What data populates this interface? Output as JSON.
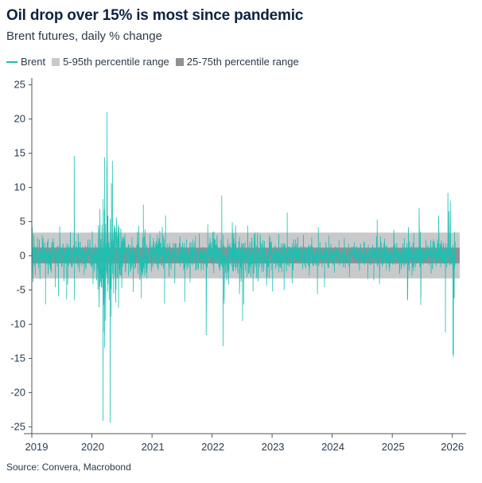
{
  "header": {
    "title": "Oil drop over 15% is most since pandemic",
    "subtitle": "Brent futures, daily % change"
  },
  "legend": {
    "brent": "Brent",
    "p5_95": "5-95th percentile range",
    "p25_75": "25-75th percentile range"
  },
  "footer": {
    "source": "Source: Convera, Macrobond"
  },
  "colors": {
    "brent": "#1fbfb0",
    "band_outer": "#c8c9cb",
    "band_inner": "#8f9193",
    "axis": "#555555"
  },
  "chart_data": {
    "type": "line",
    "title": "Oil drop over 15% is most since pandemic",
    "subtitle": "Brent futures, daily % change",
    "xlabel": "",
    "ylabel": "",
    "ylim": [
      -26,
      26
    ],
    "xlim": [
      "2019-01-01",
      "2026-02-15"
    ],
    "yticks": [
      25,
      20,
      15,
      10,
      5,
      0,
      -5,
      -10,
      -15,
      -20,
      -25
    ],
    "xticks": [
      "2019",
      "2020",
      "2021",
      "2022",
      "2023",
      "2024",
      "2025",
      "2026"
    ],
    "grid": false,
    "legend_position": "top-left",
    "bands": [
      {
        "name": "5-95th percentile range",
        "low": -3.3,
        "high": 3.4
      },
      {
        "name": "25-75th percentile range",
        "low": -1.1,
        "high": 1.2
      }
    ],
    "series": [
      {
        "name": "Brent",
        "points": [
          [
            "2019-01-02",
            -2.5
          ],
          [
            "2019-01-04",
            4.2
          ],
          [
            "2019-01-08",
            -3.8
          ],
          [
            "2019-01-14",
            3.1
          ],
          [
            "2019-01-22",
            -2.9
          ],
          [
            "2019-02-04",
            2.7
          ],
          [
            "2019-02-20",
            -3.4
          ],
          [
            "2019-03-05",
            3.0
          ],
          [
            "2019-03-25",
            -7.1
          ],
          [
            "2019-04-10",
            2.5
          ],
          [
            "2019-05-23",
            -4.6
          ],
          [
            "2019-06-12",
            -5.9
          ],
          [
            "2019-06-20",
            4.3
          ],
          [
            "2019-07-15",
            -3.7
          ],
          [
            "2019-08-01",
            -6.4
          ],
          [
            "2019-08-07",
            -4.2
          ],
          [
            "2019-08-23",
            3.5
          ],
          [
            "2019-09-16",
            14.6
          ],
          [
            "2019-09-17",
            -6.5
          ],
          [
            "2019-10-10",
            3.2
          ],
          [
            "2019-11-15",
            -2.8
          ],
          [
            "2019-12-20",
            2.4
          ],
          [
            "2020-01-03",
            3.6
          ],
          [
            "2020-01-08",
            -4.1
          ],
          [
            "2020-01-30",
            -3.6
          ],
          [
            "2020-02-24",
            -3.8
          ],
          [
            "2020-03-02",
            4.5
          ],
          [
            "2020-03-09",
            -24.1
          ],
          [
            "2020-03-10",
            8.3
          ],
          [
            "2020-03-12",
            -7.2
          ],
          [
            "2020-03-16",
            -11.2
          ],
          [
            "2020-03-18",
            -13.4
          ],
          [
            "2020-03-19",
            14.4
          ],
          [
            "2020-03-25",
            -9.5
          ],
          [
            "2020-04-01",
            13.0
          ],
          [
            "2020-04-02",
            21.0
          ],
          [
            "2020-04-03",
            13.9
          ],
          [
            "2020-04-06",
            -3.1
          ],
          [
            "2020-04-09",
            -4.1
          ],
          [
            "2020-04-15",
            -6.4
          ],
          [
            "2020-04-21",
            -24.4
          ],
          [
            "2020-04-22",
            5.4
          ],
          [
            "2020-04-28",
            -8.9
          ],
          [
            "2020-04-29",
            10.6
          ],
          [
            "2020-05-05",
            13.9
          ],
          [
            "2020-05-12",
            -5.5
          ],
          [
            "2020-05-20",
            4.2
          ],
          [
            "2020-06-11",
            -7.6
          ],
          [
            "2020-06-25",
            4.0
          ],
          [
            "2020-07-20",
            3.2
          ],
          [
            "2020-08-10",
            -3.0
          ],
          [
            "2020-09-08",
            -5.3
          ],
          [
            "2020-10-12",
            4.4
          ],
          [
            "2020-10-28",
            -6.2
          ],
          [
            "2020-11-09",
            7.5
          ],
          [
            "2020-11-16",
            2.8
          ],
          [
            "2020-12-01",
            -3.3
          ],
          [
            "2021-01-10",
            2.6
          ],
          [
            "2021-02-01",
            3.1
          ],
          [
            "2021-03-04",
            4.2
          ],
          [
            "2021-03-18",
            -7.0
          ],
          [
            "2021-03-24",
            5.9
          ],
          [
            "2021-04-15",
            -3.0
          ],
          [
            "2021-05-19",
            -4.0
          ],
          [
            "2021-06-20",
            2.8
          ],
          [
            "2021-07-19",
            -6.7
          ],
          [
            "2021-08-20",
            -3.9
          ],
          [
            "2021-09-22",
            2.9
          ],
          [
            "2021-10-15",
            3.3
          ],
          [
            "2021-11-26",
            -11.6
          ],
          [
            "2021-12-06",
            4.6
          ],
          [
            "2022-01-12",
            3.6
          ],
          [
            "2022-02-24",
            2.3
          ],
          [
            "2022-03-01",
            8.8
          ],
          [
            "2022-03-09",
            -13.2
          ],
          [
            "2022-03-10",
            3.1
          ],
          [
            "2022-03-15",
            -6.5
          ],
          [
            "2022-03-16",
            -7.0
          ],
          [
            "2022-04-11",
            -4.2
          ],
          [
            "2022-05-04",
            4.9
          ],
          [
            "2022-06-17",
            -5.6
          ],
          [
            "2022-07-05",
            -9.5
          ],
          [
            "2022-07-12",
            -7.1
          ],
          [
            "2022-08-05",
            4.4
          ],
          [
            "2022-09-07",
            -5.2
          ],
          [
            "2022-10-05",
            3.4
          ],
          [
            "2022-11-28",
            -4.4
          ],
          [
            "2022-12-14",
            3.0
          ],
          [
            "2023-01-04",
            -5.2
          ],
          [
            "2023-02-10",
            3.2
          ],
          [
            "2023-03-15",
            -5.0
          ],
          [
            "2023-04-03",
            6.3
          ],
          [
            "2023-05-03",
            -4.0
          ],
          [
            "2023-06-05",
            2.7
          ],
          [
            "2023-07-10",
            3.1
          ],
          [
            "2023-08-15",
            -2.9
          ],
          [
            "2023-10-04",
            -5.6
          ],
          [
            "2023-10-09",
            4.2
          ],
          [
            "2023-11-16",
            -4.6
          ],
          [
            "2023-12-12",
            3.0
          ],
          [
            "2024-01-15",
            -2.5
          ],
          [
            "2024-02-12",
            2.3
          ],
          [
            "2024-03-15",
            2.6
          ],
          [
            "2024-04-15",
            -3.1
          ],
          [
            "2024-05-15",
            2.0
          ],
          [
            "2024-06-15",
            -2.2
          ],
          [
            "2024-07-15",
            2.1
          ],
          [
            "2024-08-05",
            -3.4
          ],
          [
            "2024-09-10",
            -3.6
          ],
          [
            "2024-10-01",
            5.3
          ],
          [
            "2024-10-15",
            -4.1
          ],
          [
            "2024-11-15",
            2.5
          ],
          [
            "2024-12-15",
            -2.3
          ],
          [
            "2025-01-10",
            3.8
          ],
          [
            "2025-02-15",
            -2.4
          ],
          [
            "2025-03-15",
            2.6
          ],
          [
            "2025-04-03",
            -6.4
          ],
          [
            "2025-04-04",
            -6.5
          ],
          [
            "2025-04-09",
            4.2
          ],
          [
            "2025-05-12",
            3.3
          ],
          [
            "2025-06-13",
            7.0
          ],
          [
            "2025-06-20",
            3.5
          ],
          [
            "2025-06-23",
            -7.2
          ],
          [
            "2025-06-24",
            -6.1
          ],
          [
            "2025-07-25",
            2.3
          ],
          [
            "2025-08-25",
            -2.6
          ],
          [
            "2025-10-10",
            5.9
          ],
          [
            "2025-11-20",
            -11.2
          ],
          [
            "2025-12-05",
            9.2
          ],
          [
            "2025-12-12",
            6.5
          ],
          [
            "2025-12-20",
            8.1
          ],
          [
            "2026-01-05",
            -14.4
          ],
          [
            "2026-01-08",
            -14.8
          ],
          [
            "2026-01-12",
            -6.2
          ],
          [
            "2026-01-15",
            3.5
          ]
        ]
      }
    ]
  }
}
